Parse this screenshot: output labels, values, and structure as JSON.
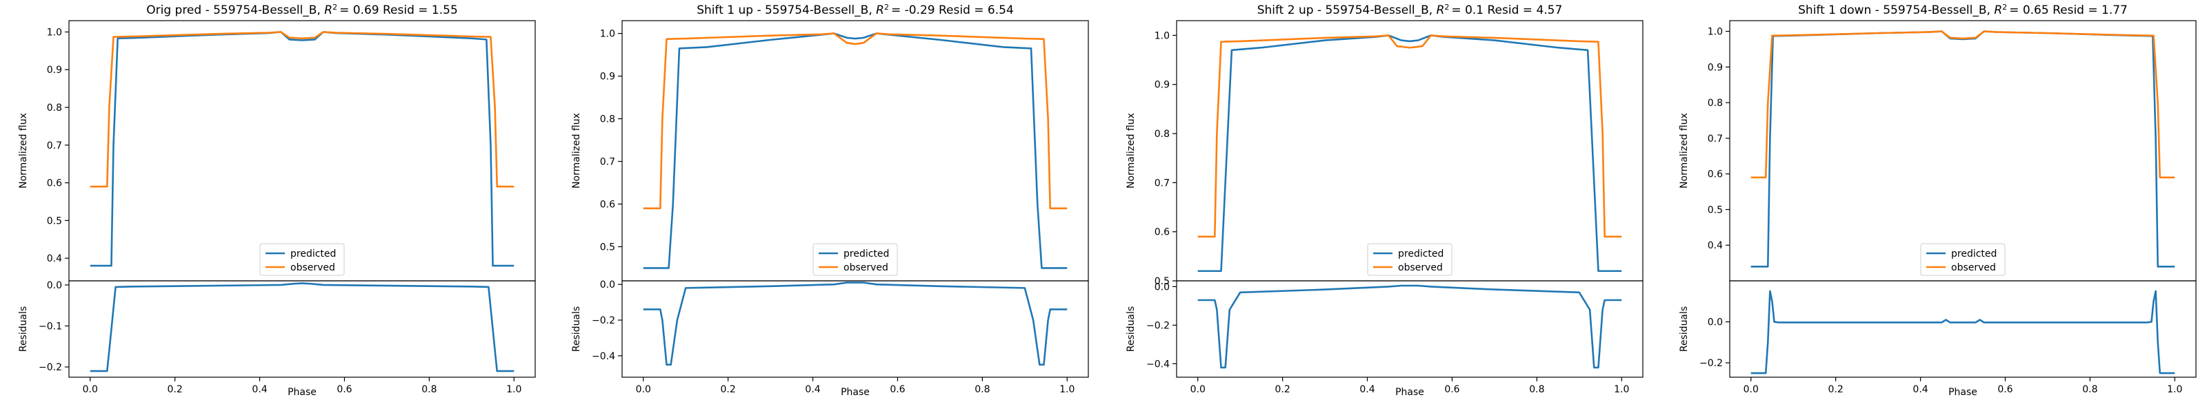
{
  "chart_data": [
    {
      "type": "line",
      "title_prefix": "Orig pred - 559754-Bessell_B, ",
      "title_r2": "= 0.69",
      "title_resid": " Resid = 1.55",
      "xlabel": "Phase",
      "ylabel_top": "Normalized flux",
      "ylabel_bottom": "Residuals",
      "xlim": [
        -0.05,
        1.05
      ],
      "x_ticks": [
        "0.0",
        "0.2",
        "0.4",
        "0.6",
        "0.8",
        "1.0"
      ],
      "top": {
        "ylim": [
          0.34,
          1.03
        ],
        "y_ticks": [
          0.4,
          0.5,
          0.6,
          0.7,
          0.8,
          0.9,
          1.0
        ],
        "y_tick_labels": [
          "0.4",
          "0.5",
          "0.6",
          "0.7",
          "0.8",
          "0.9",
          "1.0"
        ],
        "series": [
          {
            "name": "predicted",
            "color": "#1f77b4",
            "x": [
              0.0,
              0.05,
              0.055,
              0.065,
              0.1,
              0.3,
              0.42,
              0.45,
              0.47,
              0.5,
              0.53,
              0.55,
              0.58,
              0.7,
              0.9,
              0.935,
              0.945,
              0.95,
              1.0
            ],
            "y": [
              0.38,
              0.38,
              0.7,
              0.983,
              0.984,
              0.993,
              0.997,
              1.0,
              0.98,
              0.978,
              0.98,
              1.0,
              0.997,
              0.993,
              0.983,
              0.98,
              0.7,
              0.38,
              0.38
            ]
          },
          {
            "name": "observed",
            "color": "#ff7f0e",
            "x": [
              0.0,
              0.04,
              0.045,
              0.055,
              0.1,
              0.3,
              0.42,
              0.45,
              0.47,
              0.5,
              0.53,
              0.55,
              0.58,
              0.7,
              0.9,
              0.945,
              0.955,
              0.96,
              1.0
            ],
            "y": [
              0.59,
              0.59,
              0.8,
              0.987,
              0.988,
              0.995,
              0.998,
              1.0,
              0.985,
              0.983,
              0.985,
              1.0,
              0.998,
              0.995,
              0.988,
              0.987,
              0.8,
              0.59,
              0.59
            ]
          }
        ]
      },
      "bottom": {
        "ylim": [
          -0.225,
          0.01
        ],
        "y_ticks": [
          -0.2,
          -0.1,
          0.0
        ],
        "y_tick_labels": [
          "−0.2",
          "−0.1",
          "0.0"
        ],
        "series": [
          {
            "name": "residual",
            "color": "#1f77b4",
            "x": [
              0.0,
              0.04,
              0.045,
              0.06,
              0.1,
              0.45,
              0.48,
              0.5,
              0.52,
              0.55,
              0.9,
              0.94,
              0.955,
              0.96,
              1.0
            ],
            "y": [
              -0.21,
              -0.21,
              -0.16,
              -0.005,
              -0.004,
              0.0,
              0.003,
              0.004,
              0.003,
              0.0,
              -0.004,
              -0.005,
              -0.16,
              -0.21,
              -0.21
            ]
          }
        ]
      },
      "legend_position": "lower center"
    },
    {
      "type": "line",
      "title_prefix": "Shift 1 up - 559754-Bessell_B, ",
      "title_r2": "= -0.29",
      "title_resid": " Resid = 6.54",
      "xlabel": "Phase",
      "ylabel_top": "Normalized flux",
      "ylabel_bottom": "Residuals",
      "xlim": [
        -0.05,
        1.05
      ],
      "x_ticks": [
        "0.0",
        "0.2",
        "0.4",
        "0.6",
        "0.8",
        "1.0"
      ],
      "top": {
        "ylim": [
          0.42,
          1.03
        ],
        "y_ticks": [
          0.5,
          0.6,
          0.7,
          0.8,
          0.9,
          1.0
        ],
        "y_tick_labels": [
          "0.5",
          "0.6",
          "0.7",
          "0.8",
          "0.9",
          "1.0"
        ],
        "series": [
          {
            "name": "predicted",
            "color": "#1f77b4",
            "x": [
              0.0,
              0.06,
              0.07,
              0.085,
              0.15,
              0.3,
              0.42,
              0.45,
              0.48,
              0.5,
              0.52,
              0.55,
              0.58,
              0.7,
              0.85,
              0.915,
              0.93,
              0.94,
              1.0
            ],
            "y": [
              0.45,
              0.45,
              0.6,
              0.965,
              0.968,
              0.985,
              0.997,
              1.0,
              0.99,
              0.988,
              0.99,
              1.0,
              0.997,
              0.985,
              0.968,
              0.965,
              0.6,
              0.45,
              0.45
            ]
          },
          {
            "name": "observed",
            "color": "#ff7f0e",
            "x": [
              0.0,
              0.04,
              0.045,
              0.055,
              0.1,
              0.3,
              0.42,
              0.45,
              0.48,
              0.5,
              0.52,
              0.55,
              0.58,
              0.7,
              0.9,
              0.945,
              0.955,
              0.96,
              1.0
            ],
            "y": [
              0.59,
              0.59,
              0.8,
              0.987,
              0.988,
              0.995,
              0.998,
              1.0,
              0.978,
              0.975,
              0.978,
              1.0,
              0.998,
              0.995,
              0.988,
              0.987,
              0.8,
              0.59,
              0.59
            ]
          }
        ]
      },
      "bottom": {
        "ylim": [
          -0.52,
          0.02
        ],
        "y_ticks": [
          -0.4,
          -0.2,
          0.0
        ],
        "y_tick_labels": [
          "−0.4",
          "−0.2",
          "0.0"
        ],
        "series": [
          {
            "name": "residual",
            "color": "#1f77b4",
            "x": [
              0.0,
              0.04,
              0.045,
              0.055,
              0.065,
              0.08,
              0.1,
              0.3,
              0.45,
              0.48,
              0.5,
              0.52,
              0.55,
              0.7,
              0.9,
              0.92,
              0.935,
              0.945,
              0.955,
              0.96,
              1.0
            ],
            "y": [
              -0.14,
              -0.14,
              -0.2,
              -0.45,
              -0.45,
              -0.2,
              -0.02,
              -0.01,
              0.0,
              0.01,
              0.01,
              0.01,
              0.0,
              -0.01,
              -0.02,
              -0.2,
              -0.45,
              -0.45,
              -0.2,
              -0.14,
              -0.14
            ]
          }
        ]
      },
      "legend_position": "lower center"
    },
    {
      "type": "line",
      "title_prefix": "Shift 2 up - 559754-Bessell_B, ",
      "title_r2": "= 0.1",
      "title_resid": " Resid = 4.57",
      "xlabel": "Phase",
      "ylabel_top": "Normalized flux",
      "ylabel_bottom": "Residuals",
      "xlim": [
        -0.05,
        1.05
      ],
      "x_ticks": [
        "0.0",
        "0.2",
        "0.4",
        "0.6",
        "0.8",
        "1.0"
      ],
      "top": {
        "ylim": [
          0.5,
          1.03
        ],
        "y_ticks": [
          0.5,
          0.6,
          0.7,
          0.8,
          0.9,
          1.0
        ],
        "y_tick_labels": [
          "0.5",
          "0.6",
          "0.7",
          "0.8",
          "0.9",
          "1.0"
        ],
        "series": [
          {
            "name": "predicted",
            "color": "#1f77b4",
            "x": [
              0.0,
              0.055,
              0.065,
              0.08,
              0.15,
              0.3,
              0.42,
              0.45,
              0.48,
              0.5,
              0.52,
              0.55,
              0.58,
              0.7,
              0.85,
              0.92,
              0.935,
              0.945,
              1.0
            ],
            "y": [
              0.52,
              0.52,
              0.7,
              0.97,
              0.975,
              0.99,
              0.997,
              1.0,
              0.99,
              0.988,
              0.99,
              1.0,
              0.997,
              0.99,
              0.975,
              0.97,
              0.7,
              0.52,
              0.52
            ]
          },
          {
            "name": "observed",
            "color": "#ff7f0e",
            "x": [
              0.0,
              0.04,
              0.045,
              0.055,
              0.1,
              0.3,
              0.42,
              0.45,
              0.47,
              0.5,
              0.53,
              0.55,
              0.58,
              0.7,
              0.9,
              0.945,
              0.955,
              0.96,
              1.0
            ],
            "y": [
              0.59,
              0.59,
              0.8,
              0.987,
              0.988,
              0.995,
              0.998,
              1.0,
              0.978,
              0.975,
              0.978,
              1.0,
              0.998,
              0.995,
              0.988,
              0.987,
              0.8,
              0.59,
              0.59
            ]
          }
        ]
      },
      "bottom": {
        "ylim": [
          -0.47,
          0.03
        ],
        "y_ticks": [
          -0.4,
          -0.2,
          0.0
        ],
        "y_tick_labels": [
          "−0.4",
          "−0.2",
          "0.0"
        ],
        "series": [
          {
            "name": "residual",
            "color": "#1f77b4",
            "x": [
              0.0,
              0.04,
              0.045,
              0.055,
              0.065,
              0.075,
              0.1,
              0.3,
              0.45,
              0.48,
              0.5,
              0.52,
              0.55,
              0.7,
              0.9,
              0.925,
              0.935,
              0.945,
              0.955,
              0.96,
              1.0
            ],
            "y": [
              -0.07,
              -0.07,
              -0.12,
              -0.42,
              -0.42,
              -0.12,
              -0.03,
              -0.015,
              0.0,
              0.005,
              0.005,
              0.005,
              0.0,
              -0.015,
              -0.03,
              -0.12,
              -0.42,
              -0.42,
              -0.12,
              -0.07,
              -0.07
            ]
          }
        ]
      },
      "legend_position": "lower center"
    },
    {
      "type": "line",
      "title_prefix": "Shift 1 down - 559754-Bessell_B, ",
      "title_r2": "= 0.65",
      "title_resid": " Resid = 1.77",
      "xlabel": "Phase",
      "ylabel_top": "Normalized flux",
      "ylabel_bottom": "Residuals",
      "xlim": [
        -0.05,
        1.05
      ],
      "x_ticks": [
        "0.0",
        "0.2",
        "0.4",
        "0.6",
        "0.8",
        "1.0"
      ],
      "top": {
        "ylim": [
          0.3,
          1.03
        ],
        "y_ticks": [
          0.4,
          0.5,
          0.6,
          0.7,
          0.8,
          0.9,
          1.0
        ],
        "y_tick_labels": [
          "0.4",
          "0.5",
          "0.6",
          "0.7",
          "0.8",
          "0.9",
          "1.0"
        ],
        "series": [
          {
            "name": "predicted",
            "color": "#1f77b4",
            "x": [
              0.0,
              0.04,
              0.045,
              0.052,
              0.1,
              0.3,
              0.42,
              0.45,
              0.47,
              0.5,
              0.53,
              0.55,
              0.58,
              0.7,
              0.9,
              0.948,
              0.955,
              0.96,
              1.0
            ],
            "y": [
              0.34,
              0.34,
              0.7,
              0.987,
              0.988,
              0.995,
              0.998,
              1.0,
              0.98,
              0.978,
              0.98,
              1.0,
              0.998,
              0.995,
              0.988,
              0.987,
              0.7,
              0.34,
              0.34
            ]
          },
          {
            "name": "observed",
            "color": "#ff7f0e",
            "x": [
              0.0,
              0.035,
              0.04,
              0.05,
              0.1,
              0.3,
              0.42,
              0.45,
              0.47,
              0.5,
              0.53,
              0.55,
              0.58,
              0.7,
              0.9,
              0.95,
              0.96,
              0.965,
              1.0
            ],
            "y": [
              0.59,
              0.59,
              0.8,
              0.988,
              0.989,
              0.995,
              0.998,
              1.0,
              0.982,
              0.98,
              0.982,
              1.0,
              0.998,
              0.995,
              0.989,
              0.988,
              0.8,
              0.59,
              0.59
            ]
          }
        ]
      },
      "bottom": {
        "ylim": [
          -0.27,
          0.2
        ],
        "y_ticks": [
          -0.2,
          0.0
        ],
        "y_tick_labels": [
          "−0.2",
          "0.0"
        ],
        "series": [
          {
            "name": "residual",
            "color": "#1f77b4",
            "x": [
              0.0,
              0.035,
              0.04,
              0.045,
              0.05,
              0.055,
              0.065,
              0.1,
              0.45,
              0.46,
              0.47,
              0.5,
              0.53,
              0.54,
              0.55,
              0.9,
              0.935,
              0.945,
              0.95,
              0.955,
              0.96,
              0.965,
              1.0
            ],
            "y": [
              -0.25,
              -0.25,
              -0.1,
              0.15,
              0.1,
              0.0,
              -0.003,
              -0.003,
              -0.003,
              0.01,
              -0.003,
              -0.003,
              -0.003,
              0.01,
              -0.003,
              -0.003,
              -0.003,
              0.0,
              0.1,
              0.15,
              -0.1,
              -0.25,
              -0.25
            ]
          }
        ]
      },
      "legend_position": "lower center"
    }
  ]
}
